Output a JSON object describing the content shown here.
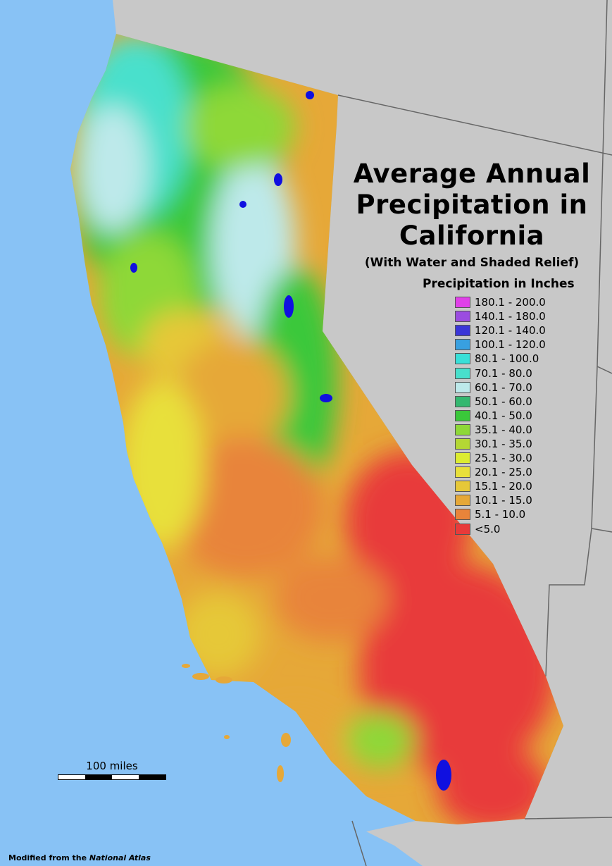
{
  "title": {
    "line1": "Average Annual",
    "line2": "Precipitation in",
    "line3": "California"
  },
  "subtitle": "(With Water and Shaded Relief)",
  "legend": {
    "title": "Precipitation in Inches",
    "items": [
      {
        "label": "180.1 - 200.0",
        "color": "#e040e8"
      },
      {
        "label": "140.1 - 180.0",
        "color": "#9b4ce0"
      },
      {
        "label": "120.1 - 140.0",
        "color": "#3a36d8"
      },
      {
        "label": "100.1 - 120.0",
        "color": "#38a0e0"
      },
      {
        "label": "80.1 - 100.0",
        "color": "#38e0d8"
      },
      {
        "label": "70.1 - 80.0",
        "color": "#48e0cc"
      },
      {
        "label": "60.1 - 70.0",
        "color": "#bde9ea"
      },
      {
        "label": "50.1 - 60.0",
        "color": "#34b870"
      },
      {
        "label": "40.1 - 50.0",
        "color": "#3ac83a"
      },
      {
        "label": "35.1 - 40.0",
        "color": "#8ed838"
      },
      {
        "label": "30.1 - 35.0",
        "color": "#b4d834"
      },
      {
        "label": "25.1 - 30.0",
        "color": "#dcec30"
      },
      {
        "label": "20.1 - 25.0",
        "color": "#e8e03a"
      },
      {
        "label": "15.1 - 20.0",
        "color": "#e6c838"
      },
      {
        "label": "10.1 - 15.0",
        "color": "#e6a838"
      },
      {
        "label": "5.1 - 10.0",
        "color": "#e8843a"
      },
      {
        "label": "<5.0",
        "color": "#e83a3a"
      }
    ]
  },
  "scale": {
    "label": "100 miles"
  },
  "credit": {
    "prefix": "Modified from the ",
    "source": "National Atlas"
  },
  "colors": {
    "ocean": "#88c2f5",
    "land_outside": "#c8c8c8",
    "water": "#1010e0"
  }
}
